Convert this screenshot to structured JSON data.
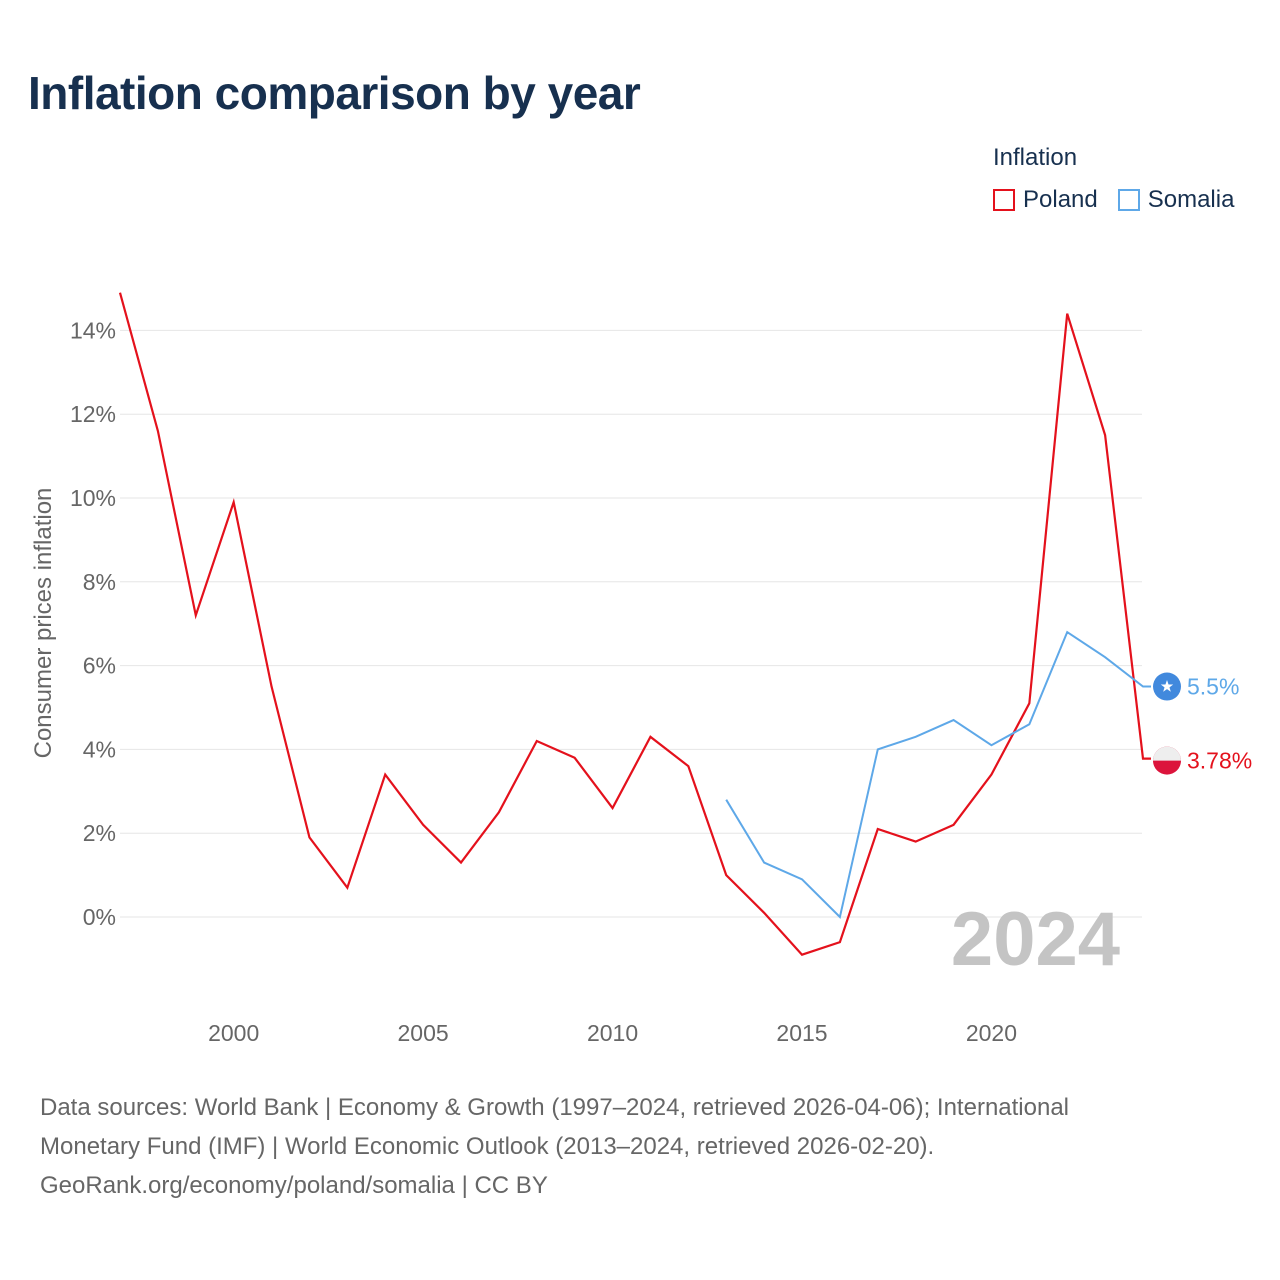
{
  "title": "Inflation comparison by year",
  "legend_title": "Inflation",
  "year_watermark": "2024",
  "footer": {
    "line1": "Data sources: World Bank | Economy & Growth (1997–2024, retrieved 2026-04-06); International",
    "line2": "Monetary Fund (IMF) | World Economic Outlook (2013–2024, retrieved 2026-02-20).",
    "line3": "GeoRank.org/economy/poland/somalia | CC BY"
  },
  "chart_data": {
    "type": "line",
    "title": "Inflation comparison by year",
    "xlabel": "",
    "ylabel": "Consumer prices inflation",
    "xlim": [
      1997,
      2024
    ],
    "ylim": [
      -2.2,
      15
    ],
    "x_ticks": [
      {
        "value": 2000,
        "label": "2000"
      },
      {
        "value": 2005,
        "label": "2005"
      },
      {
        "value": 2010,
        "label": "2010"
      },
      {
        "value": 2015,
        "label": "2015"
      },
      {
        "value": 2020,
        "label": "2020"
      }
    ],
    "y_ticks": [
      {
        "value": 0,
        "label": "0%"
      },
      {
        "value": 2,
        "label": "2%"
      },
      {
        "value": 4,
        "label": "4%"
      },
      {
        "value": 6,
        "label": "6%"
      },
      {
        "value": 8,
        "label": "8%"
      },
      {
        "value": 10,
        "label": "10%"
      },
      {
        "value": 12,
        "label": "12%"
      },
      {
        "value": 14,
        "label": "14%"
      }
    ],
    "grid": true,
    "legend_position": "top-right",
    "series": [
      {
        "name": "Poland",
        "color": "#e4111c",
        "end_label": "3.78%",
        "flag": "poland-flag",
        "x": [
          1997,
          1998,
          1999,
          2000,
          2001,
          2002,
          2003,
          2004,
          2005,
          2006,
          2007,
          2008,
          2009,
          2010,
          2011,
          2012,
          2013,
          2014,
          2015,
          2016,
          2017,
          2018,
          2019,
          2020,
          2021,
          2022,
          2023,
          2024
        ],
        "values": [
          14.9,
          11.6,
          7.2,
          9.9,
          5.5,
          1.9,
          0.7,
          3.4,
          2.2,
          1.3,
          2.5,
          4.2,
          3.8,
          2.6,
          4.3,
          3.6,
          1.0,
          0.1,
          -0.9,
          -0.6,
          2.1,
          1.8,
          2.2,
          3.4,
          5.1,
          14.4,
          11.5,
          3.78
        ]
      },
      {
        "name": "Somalia",
        "color": "#5ea8e8",
        "end_label": "5.5%",
        "flag": "somalia-flag",
        "x": [
          2013,
          2014,
          2015,
          2016,
          2017,
          2018,
          2019,
          2020,
          2021,
          2022,
          2023,
          2024
        ],
        "values": [
          2.8,
          1.3,
          0.9,
          0.0,
          4.0,
          4.3,
          4.7,
          4.1,
          4.6,
          6.8,
          6.2,
          5.5
        ]
      }
    ]
  }
}
